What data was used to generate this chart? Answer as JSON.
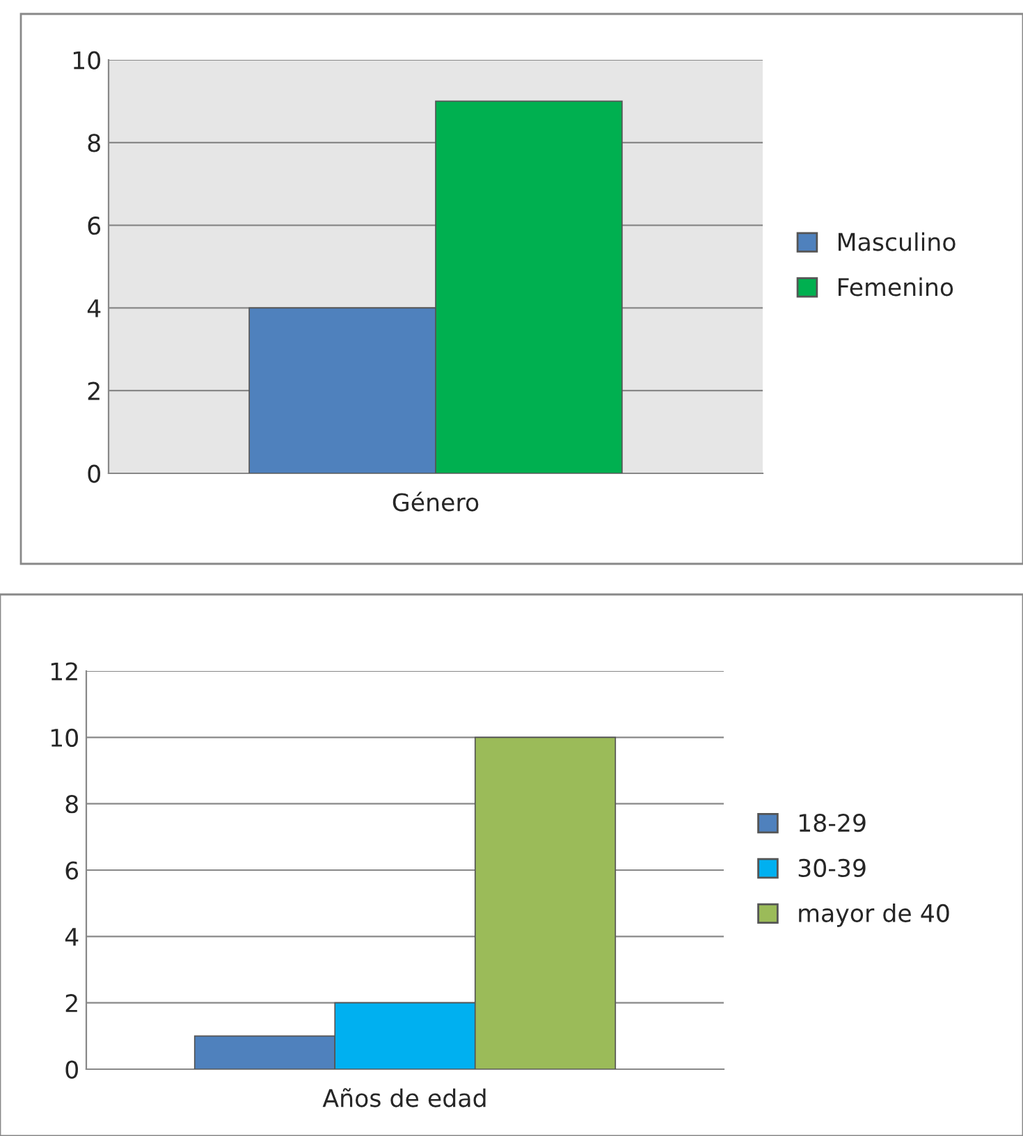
{
  "chart_data": [
    {
      "type": "bar",
      "categories": [
        "Género"
      ],
      "series": [
        {
          "name": "Masculino",
          "color": "#4f81bd",
          "values": [
            4
          ]
        },
        {
          "name": "Femenino",
          "color": "#00b050",
          "values": [
            9
          ]
        }
      ],
      "ylim": [
        0,
        10
      ],
      "yticks": [
        0,
        2,
        4,
        6,
        8,
        10
      ],
      "grid": "y",
      "legend": "right"
    },
    {
      "type": "bar",
      "categories": [
        "Años de edad"
      ],
      "series": [
        {
          "name": "18-29",
          "color": "#4f81bd",
          "values": [
            1
          ]
        },
        {
          "name": "30-39",
          "color": "#00b0f0",
          "values": [
            2
          ]
        },
        {
          "name": "mayor de 40",
          "color": "#9bbb59",
          "values": [
            10
          ]
        }
      ],
      "ylim": [
        0,
        12
      ],
      "yticks": [
        0,
        2,
        4,
        6,
        8,
        10,
        12
      ],
      "grid": "y",
      "legend": "right"
    }
  ]
}
